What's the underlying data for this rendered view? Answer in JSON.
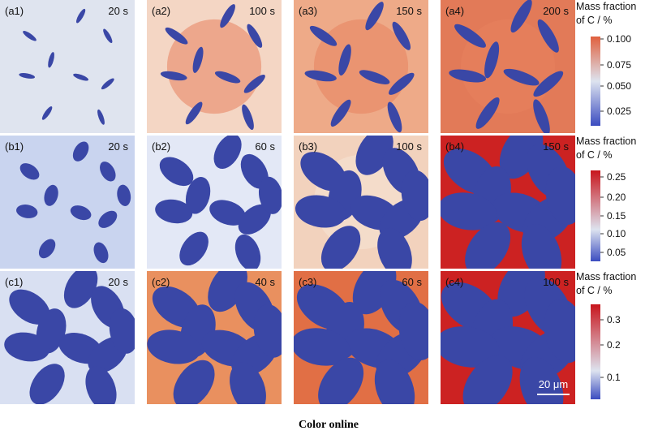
{
  "panels": [
    [
      {
        "label": "(a1)",
        "time": "20 s"
      },
      {
        "label": "(a2)",
        "time": "100 s"
      },
      {
        "label": "(a3)",
        "time": "150 s"
      },
      {
        "label": "(a4)",
        "time": "200 s"
      }
    ],
    [
      {
        "label": "(b1)",
        "time": "20 s"
      },
      {
        "label": "(b2)",
        "time": "60 s"
      },
      {
        "label": "(b3)",
        "time": "100 s"
      },
      {
        "label": "(b4)",
        "time": "150 s"
      }
    ],
    [
      {
        "label": "(c1)",
        "time": "20 s"
      },
      {
        "label": "(c2)",
        "time": "40 s"
      },
      {
        "label": "(c3)",
        "time": "60 s"
      },
      {
        "label": "(c4)",
        "time": "100 s"
      }
    ]
  ],
  "colorbars": [
    {
      "title": [
        "Mass fraction",
        "of C / %"
      ],
      "ticks": [
        "0.100",
        "0.075",
        "0.050",
        "0.025"
      ]
    },
    {
      "title": [
        "Mass fraction",
        "of C / %"
      ],
      "ticks": [
        "0.25",
        "0.20",
        "0.15",
        "0.10",
        "0.05"
      ]
    },
    {
      "title": [
        "Mass fraction",
        "of C / %"
      ],
      "ticks": [
        "0.3",
        "0.2",
        "0.1"
      ]
    }
  ],
  "scale_bar": "20 μm",
  "caption": "Color online"
}
